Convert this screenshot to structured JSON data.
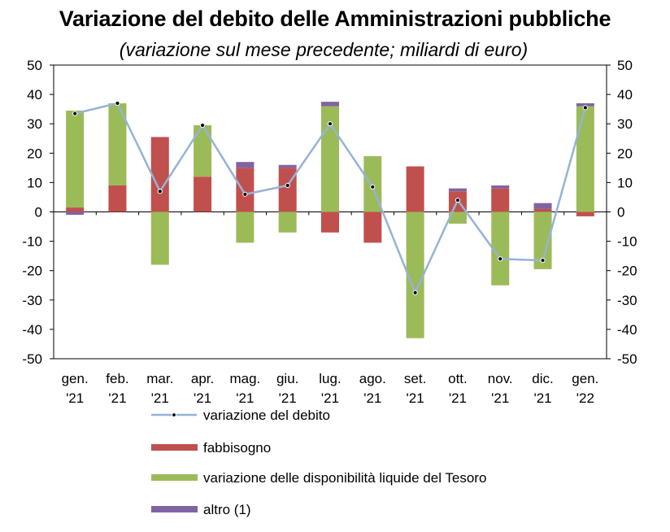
{
  "chart_data": {
    "type": "bar",
    "stacked": true,
    "title": "Variazione del debito delle Amministrazioni pubbliche",
    "subtitle": "(variazione sul mese precedente; miliardi di euro)",
    "categories": [
      [
        "gen.",
        "'21"
      ],
      [
        "feb.",
        "'21"
      ],
      [
        "mar.",
        "'21"
      ],
      [
        "apr.",
        "'21"
      ],
      [
        "mag.",
        "'21"
      ],
      [
        "giu.",
        "'21"
      ],
      [
        "lug.",
        "'21"
      ],
      [
        "ago.",
        "'21"
      ],
      [
        "set.",
        "'21"
      ],
      [
        "ott.",
        "'21"
      ],
      [
        "nov.",
        "'21"
      ],
      [
        "dic.",
        "'21"
      ],
      [
        "gen.",
        "'22"
      ]
    ],
    "ylim": [
      -50,
      50
    ],
    "yticks": [
      50,
      40,
      30,
      20,
      10,
      0,
      -10,
      -20,
      -30,
      -40,
      -50
    ],
    "y2lim": [
      -50,
      50
    ],
    "grid": false,
    "legend_position": "bottom",
    "series": [
      {
        "name": "fabbisogno",
        "kind": "bar",
        "color": "#C0504D",
        "values": [
          1.5,
          9.0,
          25.5,
          12.0,
          15.0,
          15.0,
          -7.0,
          -10.5,
          15.5,
          7.0,
          8.0,
          1.0,
          -1.5
        ]
      },
      {
        "name": "variazione delle disponibilità liquide del Tesoro",
        "kind": "bar",
        "color": "#9BBB59",
        "values": [
          33.0,
          28.0,
          -18.0,
          17.5,
          -10.5,
          -7.0,
          36.0,
          19.0,
          -43.0,
          -4.0,
          -25.0,
          -19.5,
          36.0
        ]
      },
      {
        "name": "altro (1)",
        "kind": "bar",
        "color": "#8064A2",
        "values": [
          -1.0,
          0.0,
          0.0,
          0.0,
          2.0,
          1.0,
          1.5,
          0.0,
          0.0,
          1.0,
          1.0,
          2.0,
          1.0
        ]
      },
      {
        "name": "variazione del debito",
        "kind": "line",
        "color": "#95B3D7",
        "values": [
          33.5,
          37.0,
          7.0,
          29.5,
          6.0,
          9.0,
          30.0,
          8.5,
          -27.5,
          4.0,
          -16.0,
          -16.5,
          35.5
        ]
      }
    ]
  }
}
